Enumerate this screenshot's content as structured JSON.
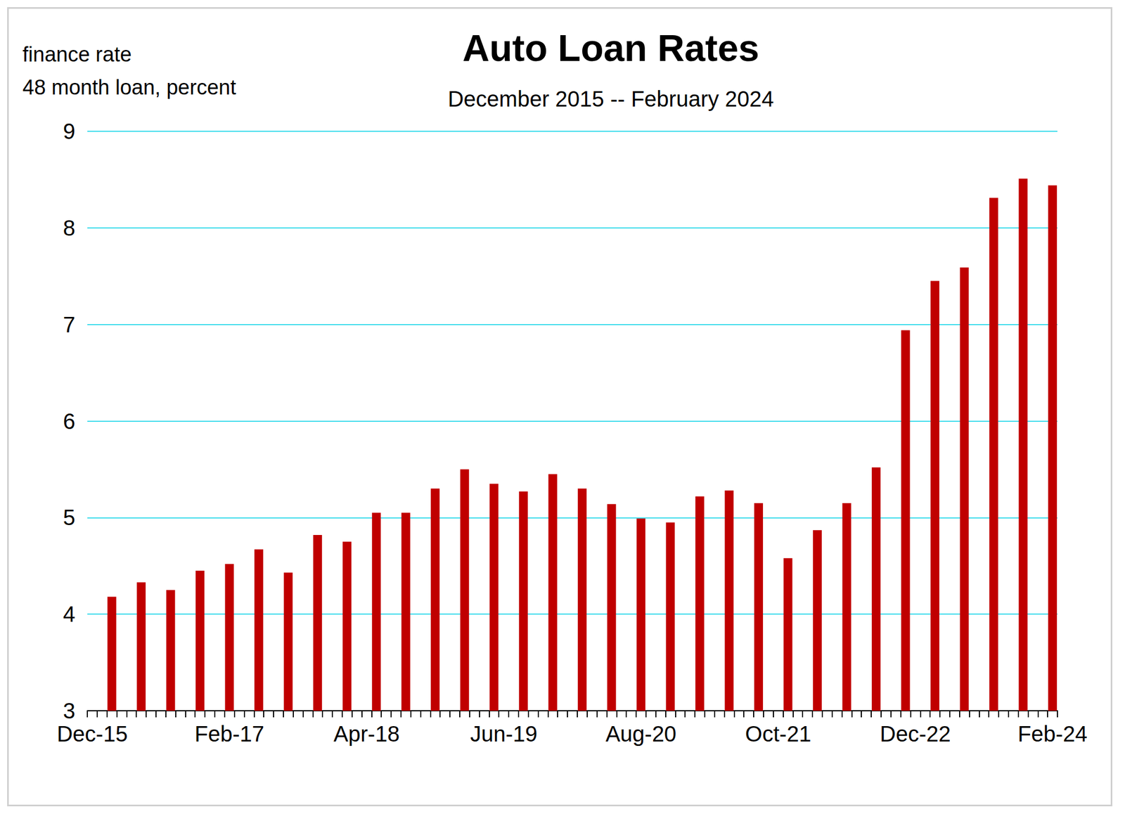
{
  "chart_data": {
    "type": "bar",
    "title": "Auto Loan Rates",
    "subtitle": "December 2015 -- February 2024",
    "ylabel": "finance rate\n48 month loan, percent",
    "categories": [
      "Dec-15",
      null,
      null,
      null,
      null,
      null,
      null,
      null,
      null,
      null,
      null,
      null,
      null,
      null,
      "Feb-17",
      null,
      null,
      null,
      null,
      null,
      null,
      null,
      null,
      null,
      null,
      null,
      null,
      null,
      "Apr-18",
      null,
      null,
      null,
      null,
      null,
      null,
      null,
      null,
      null,
      null,
      null,
      null,
      null,
      "Jun-19",
      null,
      null,
      null,
      null,
      null,
      null,
      null,
      null,
      null,
      null,
      null,
      null,
      null,
      "Aug-20",
      null,
      null,
      null,
      null,
      null,
      null,
      null,
      null,
      null,
      null,
      null,
      null,
      null,
      "Oct-21",
      null,
      null,
      null,
      null,
      null,
      null,
      null,
      null,
      null,
      null,
      null,
      null,
      null,
      "Dec-22",
      null,
      null,
      null,
      null,
      null,
      null,
      null,
      null,
      null,
      null,
      null,
      null,
      null,
      "Feb-24"
    ],
    "values": [
      null,
      null,
      4.18,
      null,
      null,
      4.33,
      null,
      null,
      4.25,
      null,
      null,
      4.45,
      null,
      null,
      4.52,
      null,
      null,
      4.67,
      null,
      null,
      4.43,
      null,
      null,
      4.82,
      null,
      null,
      4.75,
      null,
      null,
      5.05,
      null,
      null,
      5.05,
      null,
      null,
      5.3,
      null,
      null,
      5.5,
      null,
      null,
      5.35,
      null,
      null,
      5.27,
      null,
      null,
      5.45,
      null,
      null,
      5.3,
      null,
      null,
      5.14,
      null,
      null,
      4.99,
      null,
      null,
      4.95,
      null,
      null,
      5.22,
      null,
      null,
      5.28,
      null,
      null,
      5.15,
      null,
      null,
      4.58,
      null,
      null,
      4.87,
      null,
      null,
      5.15,
      null,
      null,
      5.52,
      null,
      null,
      6.94,
      null,
      null,
      7.45,
      null,
      null,
      7.59,
      null,
      null,
      8.31,
      null,
      null,
      8.51,
      null,
      null,
      8.44
    ],
    "color": "#c00000",
    "ylim": [
      3,
      9
    ],
    "yticks": [
      3,
      4,
      5,
      6,
      7,
      8,
      9
    ],
    "grid": true
  }
}
